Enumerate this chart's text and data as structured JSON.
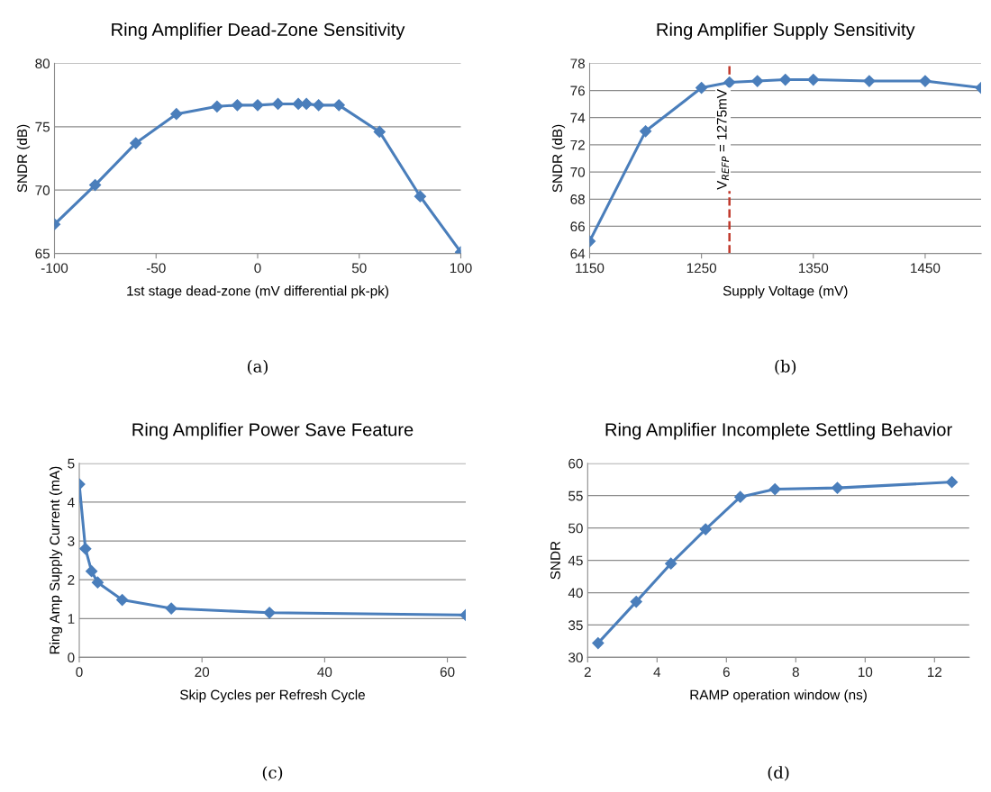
{
  "chart_data": [
    {
      "type": "line",
      "title": "Ring Amplifier Dead-Zone Sensitivity",
      "xlabel": "1st stage dead-zone (mV differential pk-pk)",
      "ylabel": "SNDR (dB)",
      "x": [
        -100,
        -80,
        -60,
        -40,
        -20,
        -10,
        0,
        10,
        20,
        24,
        30,
        40,
        60,
        80,
        100
      ],
      "series": [
        {
          "color": "#4a7ebb",
          "values": [
            67.3,
            70.4,
            73.7,
            76.0,
            76.6,
            76.7,
            76.7,
            76.8,
            76.8,
            76.8,
            76.7,
            76.7,
            74.6,
            69.5,
            65.1
          ]
        }
      ],
      "xlim": [
        -100,
        100
      ],
      "xticks": [
        -100,
        -50,
        0,
        50,
        100
      ],
      "ylim": [
        65,
        80
      ],
      "yticks": [
        65,
        70,
        75,
        80
      ],
      "grid": "y",
      "marker": "diamond",
      "line_style": "solid",
      "annotations": [
        "(a)"
      ]
    },
    {
      "type": "line",
      "title": "Ring Amplifier Supply Sensitivity",
      "xlabel": "Supply Voltage (mV)",
      "ylabel": "SNDR (dB)",
      "x": [
        1150,
        1200,
        1250,
        1275,
        1300,
        1325,
        1350,
        1400,
        1450,
        1500
      ],
      "series": [
        {
          "color": "#4a7ebb",
          "values": [
            64.9,
            73.0,
            76.2,
            76.6,
            76.7,
            76.8,
            76.8,
            76.7,
            76.7,
            76.2
          ]
        }
      ],
      "xlim": [
        1150,
        1500
      ],
      "xticks": [
        1150,
        1250,
        1350,
        1450
      ],
      "ylim": [
        64,
        78
      ],
      "yticks": [
        64,
        66,
        68,
        70,
        72,
        74,
        76,
        78
      ],
      "ref_lines": [
        {
          "axis": "x",
          "value": 1275,
          "label": "V$_{REFP}$ = 1275mV",
          "color": "#c0392b",
          "line_style": "dashed"
        }
      ],
      "grid": "y",
      "marker": "diamond",
      "line_style": "solid",
      "annotations": [
        "(b)"
      ]
    },
    {
      "type": "line",
      "title": "Ring Amplifier Power Save Feature",
      "xlabel": "Skip Cycles per Refresh Cycle",
      "ylabel": "Ring Amp Supply Current (mA)",
      "x": [
        0,
        1,
        2,
        3,
        7,
        15,
        31,
        63
      ],
      "series": [
        {
          "color": "#4a7ebb",
          "values": [
            4.46,
            2.8,
            2.22,
            1.93,
            1.48,
            1.26,
            1.15,
            1.09
          ]
        }
      ],
      "xlim": [
        0,
        63
      ],
      "xticks": [
        0,
        20,
        40,
        60
      ],
      "ylim": [
        0,
        5
      ],
      "yticks": [
        0,
        1,
        2,
        3,
        4,
        5
      ],
      "grid": "y",
      "marker": "diamond",
      "line_style": "solid",
      "annotations": [
        "(c)"
      ]
    },
    {
      "type": "line",
      "title": "Ring Amplifier Incomplete Settling Behavior",
      "xlabel": "RAMP operation window (ns)",
      "ylabel": "SNDR",
      "x": [
        2.3,
        3.4,
        4.4,
        5.4,
        6.4,
        7.4,
        9.2,
        12.5
      ],
      "series": [
        {
          "color": "#4a7ebb",
          "values": [
            32.2,
            38.6,
            44.5,
            49.8,
            54.8,
            56.0,
            56.2,
            57.1
          ]
        }
      ],
      "xlim": [
        2,
        13
      ],
      "xticks": [
        2,
        4,
        6,
        8,
        10,
        12
      ],
      "ylim": [
        30,
        60
      ],
      "yticks": [
        30,
        35,
        40,
        45,
        50,
        55,
        60
      ],
      "grid": "y",
      "marker": "diamond",
      "line_style": "solid",
      "annotations": [
        "(d)"
      ]
    }
  ]
}
